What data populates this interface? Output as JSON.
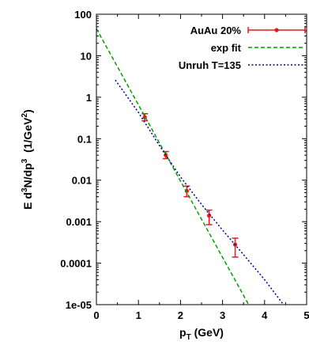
{
  "chart_data": {
    "type": "scatter",
    "x_axis": {
      "label_main": "p",
      "label_sub": "T",
      "label_unit": " (GeV)",
      "range": [
        0,
        5
      ],
      "ticks": [
        0,
        1,
        2,
        3,
        4,
        5
      ],
      "tick_labels": [
        "0",
        "1",
        "2",
        "3",
        "4",
        "5"
      ]
    },
    "y_axis": {
      "scale": "log",
      "label_prefix": "E d",
      "label_sup1": "3",
      "label_mid": "N/dp",
      "label_sup2": "3",
      "label_unit_open": "  (1/GeV",
      "label_sup3": "2",
      "label_unit_close": ")",
      "range": [
        1e-05,
        100
      ],
      "ticks": [
        1e-05,
        0.0001,
        0.001,
        0.01,
        0.1,
        1,
        10,
        100
      ],
      "tick_labels": [
        "1e-05",
        "0.0001",
        "0.001",
        "0.01",
        "0.1",
        "1",
        "10",
        "100"
      ]
    },
    "legend": {
      "position": "top-right"
    },
    "series": [
      {
        "name": "AuAu 20%",
        "kind": "points_with_errors",
        "color": "#e31a1c",
        "points": [
          {
            "x": 1.15,
            "y": 0.33,
            "ylo": 0.27,
            "yhi": 0.4
          },
          {
            "x": 1.65,
            "y": 0.04,
            "ylo": 0.033,
            "yhi": 0.049
          },
          {
            "x": 2.15,
            "y": 0.0055,
            "ylo": 0.004,
            "yhi": 0.0072
          },
          {
            "x": 2.68,
            "y": 0.0014,
            "ylo": 0.00085,
            "yhi": 0.0019
          },
          {
            "x": 3.3,
            "y": 0.00028,
            "ylo": 0.00014,
            "yhi": 0.0004
          }
        ]
      },
      {
        "name": "exp fit",
        "kind": "dashed_line",
        "color": "#00a000",
        "points": [
          {
            "x": 0.0,
            "y": 45
          },
          {
            "x": 3.62,
            "y": 1e-05
          }
        ]
      },
      {
        "name": "Unruh T=135",
        "kind": "dotted_line",
        "color": "#000090",
        "points": [
          {
            "x": 0.45,
            "y": 2.6
          },
          {
            "x": 1.0,
            "y": 0.43
          },
          {
            "x": 1.5,
            "y": 0.068
          },
          {
            "x": 2.0,
            "y": 0.012
          },
          {
            "x": 2.5,
            "y": 0.0026
          },
          {
            "x": 3.0,
            "y": 0.00063
          },
          {
            "x": 3.5,
            "y": 0.00016
          },
          {
            "x": 4.0,
            "y": 4e-05
          },
          {
            "x": 4.45,
            "y": 1e-05
          }
        ]
      }
    ]
  }
}
